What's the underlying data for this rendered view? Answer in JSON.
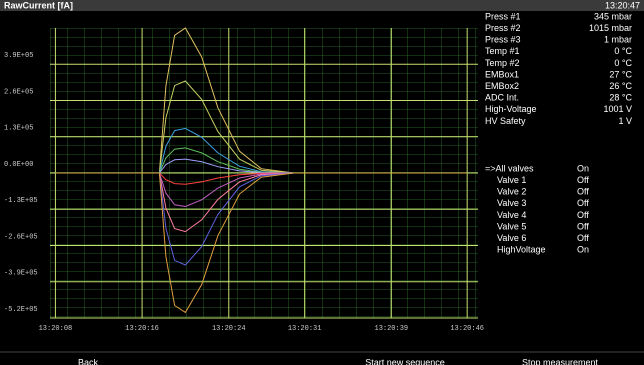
{
  "header": {
    "title": "RawCurrent [fA]",
    "time": "13:20:47"
  },
  "chart_data": {
    "type": "line",
    "x": [
      48008,
      48017.6,
      48018.2,
      48019,
      48020,
      48021.5,
      48023,
      48025,
      48027,
      48030,
      48046
    ],
    "xlim": [
      48007.5,
      48047
    ],
    "xticks": [
      {
        "value": 48008,
        "label": "13:20:08"
      },
      {
        "value": 48016,
        "label": "13:20:16"
      },
      {
        "value": 48024,
        "label": "13:20:24"
      },
      {
        "value": 48031,
        "label": "13:20:31"
      },
      {
        "value": 48039,
        "label": "13:20:39"
      },
      {
        "value": 48046,
        "label": "13:20:46"
      }
    ],
    "ylim": [
      -520000,
      520000
    ],
    "yticks": [
      {
        "value": -520000,
        "label": "-5.2E+05"
      },
      {
        "value": -390000,
        "label": "-3.9E+05"
      },
      {
        "value": -260000,
        "label": "-2.6E+05"
      },
      {
        "value": -130000,
        "label": "-1.3E+05"
      },
      {
        "value": 0,
        "label": "0.0E+00"
      },
      {
        "value": 130000,
        "label": "1.3E+05"
      },
      {
        "value": 260000,
        "label": "2.6E+05"
      },
      {
        "value": 390000,
        "label": "3.9E+05"
      }
    ],
    "grid": true,
    "series": [
      {
        "color": "#e0c060",
        "values": [
          0,
          0,
          312000,
          494000,
          520000,
          416000,
          234000,
          78000,
          15600,
          0,
          0
        ]
      },
      {
        "color": "#c8d060",
        "values": [
          0,
          0,
          198000,
          313500,
          330000,
          264000,
          148500,
          49500,
          9900,
          0,
          0
        ]
      },
      {
        "color": "#40a0e0",
        "values": [
          0,
          0,
          96000,
          152000,
          160000,
          128000,
          72000,
          24000,
          4800,
          0,
          0
        ]
      },
      {
        "color": "#60c060",
        "values": [
          0,
          0,
          54000,
          85500,
          90000,
          72000,
          40500,
          13500,
          2700,
          0,
          0
        ]
      },
      {
        "color": "#a0a0ff",
        "values": [
          0,
          0,
          30000,
          47500,
          50000,
          40000,
          22500,
          7500,
          1500,
          0,
          0
        ]
      },
      {
        "color": "#ff4040",
        "values": [
          0,
          0,
          -24000,
          -38000,
          -40000,
          -32000,
          -18000,
          -6000,
          -1200,
          0,
          0
        ]
      },
      {
        "color": "#c060c0",
        "values": [
          0,
          0,
          -72000,
          -114000,
          -120000,
          -96000,
          -54000,
          -18000,
          -3600,
          0,
          0
        ]
      },
      {
        "color": "#ff80a0",
        "values": [
          0,
          0,
          -126000,
          -199500,
          -210000,
          -168000,
          -94500,
          -31500,
          -6300,
          0,
          0
        ]
      },
      {
        "color": "#6060e0",
        "values": [
          0,
          0,
          -198000,
          -313500,
          -330000,
          -264000,
          -148500,
          -49500,
          -9900,
          0,
          0
        ]
      },
      {
        "color": "#e0a040",
        "values": [
          0,
          0,
          -300000,
          -475000,
          -500000,
          -400000,
          -225000,
          -75000,
          -15000,
          0,
          0
        ]
      }
    ]
  },
  "status": [
    {
      "label": "Press #1",
      "value": "345 mbar"
    },
    {
      "label": "Press #2",
      "value": "1015 mbar"
    },
    {
      "label": "Press #3",
      "value": "1 mbar"
    },
    {
      "label": "Temp #1",
      "value": "0 °C"
    },
    {
      "label": "Temp #2",
      "value": "0 °C"
    },
    {
      "label": "EMBox1",
      "value": "27 °C"
    },
    {
      "label": "EMBox2",
      "value": "26 °C"
    },
    {
      "label": "ADC Int.",
      "value": "28 °C"
    },
    {
      "label": "High-Voltage",
      "value": "1001 V"
    },
    {
      "label": "HV Safety",
      "value": "1 V"
    }
  ],
  "valves": [
    {
      "label": "=>All valves",
      "value": "On"
    },
    {
      "label": "Valve 1",
      "value": "Off"
    },
    {
      "label": "Valve 2",
      "value": "Off"
    },
    {
      "label": "Valve 3",
      "value": "Off"
    },
    {
      "label": "Valve 4",
      "value": "Off"
    },
    {
      "label": "Valve 5",
      "value": "Off"
    },
    {
      "label": "Valve 6",
      "value": "Off"
    },
    {
      "label": "HighVoltage",
      "value": "On"
    }
  ],
  "buttons": [
    "Back",
    "Start new sequence",
    "Stop measurement"
  ]
}
